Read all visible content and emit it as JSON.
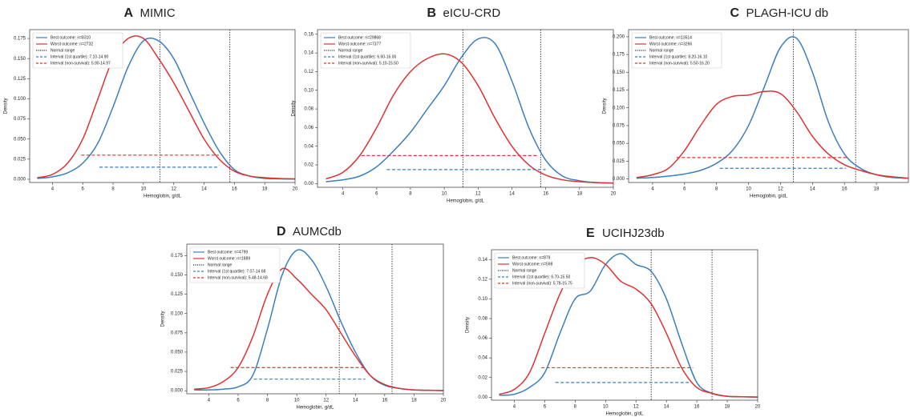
{
  "chart_data": [
    {
      "type": "line",
      "label": "A",
      "title": "MIMIC",
      "xlabel": "Hemoglobin, g/dL",
      "ylabel": "Density",
      "x": [
        3,
        4,
        5,
        6,
        7,
        8,
        9,
        10,
        11,
        12,
        13,
        14,
        15,
        16,
        17,
        18,
        19,
        20
      ],
      "series": [
        {
          "name": "Best outcome: n=8310",
          "color": "#3a7fc1",
          "values": [
            0.001,
            0.003,
            0.008,
            0.02,
            0.045,
            0.09,
            0.14,
            0.172,
            0.172,
            0.15,
            0.11,
            0.07,
            0.035,
            0.012,
            0.004,
            0.001,
            0.0005,
            0.0002
          ]
        },
        {
          "name": "Worst outcome: n=2732",
          "color": "#e03232",
          "values": [
            0.002,
            0.006,
            0.02,
            0.05,
            0.1,
            0.15,
            0.175,
            0.175,
            0.15,
            0.12,
            0.085,
            0.05,
            0.025,
            0.01,
            0.004,
            0.002,
            0.001,
            0.0005
          ]
        }
      ],
      "normal_range": {
        "name": "Normal range",
        "x": [
          11.1,
          15.7
        ]
      },
      "intervals": [
        {
          "name": "Interval (1st quartile): 7.10-14.90",
          "color": "#3a7fc1",
          "x": [
            7.1,
            14.9
          ],
          "y": 0.015
        },
        {
          "name": "Interval (non-survival): 5.90-14.97",
          "color": "#e03232",
          "x": [
            5.9,
            14.97
          ],
          "y": 0.03
        }
      ],
      "xlim": [
        2.5,
        20
      ],
      "xticks": [
        4,
        6,
        8,
        10,
        12,
        14,
        16,
        18,
        20
      ],
      "ylim": [
        -0.004,
        0.186
      ],
      "yticks": [
        {
          "value": 0,
          "label": "0.000"
        },
        {
          "value": 0.025,
          "label": "0.025"
        },
        {
          "value": 0.05,
          "label": "0.050"
        },
        {
          "value": 0.075,
          "label": "0.075"
        },
        {
          "value": 0.1,
          "label": "0.100"
        },
        {
          "value": 0.125,
          "label": "0.125"
        },
        {
          "value": 0.15,
          "label": "0.150"
        },
        {
          "value": 0.175,
          "label": "0.175"
        }
      ]
    },
    {
      "type": "line",
      "label": "B",
      "title": "eICU-CRD",
      "xlabel": "Hemoglobin, g/dL",
      "ylabel": "Density",
      "x": [
        3,
        4,
        5,
        6,
        7,
        8,
        9,
        10,
        11,
        12,
        13,
        14,
        15,
        16,
        17,
        18,
        19,
        20
      ],
      "series": [
        {
          "name": "Best outcome: n=29868",
          "color": "#3a7fc1",
          "values": [
            0.002,
            0.004,
            0.008,
            0.018,
            0.035,
            0.055,
            0.08,
            0.105,
            0.135,
            0.155,
            0.15,
            0.11,
            0.06,
            0.025,
            0.008,
            0.003,
            0.001,
            0.0005
          ]
        },
        {
          "name": "Worst outcome: n=7377",
          "color": "#e03232",
          "values": [
            0.005,
            0.012,
            0.03,
            0.06,
            0.095,
            0.12,
            0.134,
            0.139,
            0.13,
            0.105,
            0.07,
            0.04,
            0.02,
            0.009,
            0.004,
            0.002,
            0.001,
            0.0005
          ]
        }
      ],
      "normal_range": {
        "name": "Normal range",
        "x": [
          11.1,
          15.7
        ]
      },
      "intervals": [
        {
          "name": "Interval (1st quartile): 6.60-16.00",
          "color": "#3a7fc1",
          "x": [
            6.6,
            16.0
          ],
          "y": 0.015
        },
        {
          "name": "Interval (non-survival): 5.10-15.50",
          "color": "#e03232",
          "x": [
            5.1,
            15.5
          ],
          "y": 0.03
        }
      ],
      "xlim": [
        2.5,
        20
      ],
      "xticks": [
        4,
        6,
        8,
        10,
        12,
        14,
        16,
        18,
        20
      ],
      "ylim": [
        -0.004,
        0.165
      ],
      "yticks": [
        {
          "value": 0,
          "label": "0.00"
        },
        {
          "value": 0.02,
          "label": "0.02"
        },
        {
          "value": 0.04,
          "label": "0.04"
        },
        {
          "value": 0.06,
          "label": "0.06"
        },
        {
          "value": 0.08,
          "label": "0.08"
        },
        {
          "value": 0.1,
          "label": "0.10"
        },
        {
          "value": 0.12,
          "label": "0.12"
        },
        {
          "value": 0.14,
          "label": "0.14"
        },
        {
          "value": 0.16,
          "label": "0.16"
        }
      ]
    },
    {
      "type": "line",
      "label": "C",
      "title": "PLAGH-ICU db",
      "xlabel": "Hemoglobin, g/dL",
      "ylabel": "Density",
      "x": [
        3,
        4,
        5,
        6,
        7,
        8,
        9,
        10,
        11,
        12,
        13,
        14,
        15,
        16,
        17,
        18,
        19,
        20
      ],
      "series": [
        {
          "name": "Best outcome: n=13514",
          "color": "#3a7fc1",
          "values": [
            0.001,
            0.002,
            0.004,
            0.007,
            0.012,
            0.022,
            0.04,
            0.075,
            0.13,
            0.185,
            0.198,
            0.15,
            0.08,
            0.035,
            0.015,
            0.006,
            0.002,
            0.001
          ]
        },
        {
          "name": "Worst outcome: n=3266",
          "color": "#e03232",
          "values": [
            0.002,
            0.006,
            0.015,
            0.04,
            0.075,
            0.105,
            0.116,
            0.118,
            0.123,
            0.12,
            0.095,
            0.06,
            0.035,
            0.02,
            0.012,
            0.006,
            0.003,
            0.001
          ]
        }
      ],
      "normal_range": {
        "name": "Normal range",
        "x": [
          12.8,
          16.7
        ]
      },
      "intervals": [
        {
          "name": "Interval (1st quartile): 8.20-16.10",
          "color": "#3a7fc1",
          "x": [
            8.2,
            16.1
          ],
          "y": 0.015
        },
        {
          "name": "Interval (non-survival): 5.50-16.20",
          "color": "#e03232",
          "x": [
            5.5,
            16.2
          ],
          "y": 0.03
        }
      ],
      "xlim": [
        2.5,
        20
      ],
      "xticks": [
        4,
        6,
        8,
        10,
        12,
        14,
        16,
        18
      ],
      "ylim": [
        -0.005,
        0.21
      ],
      "yticks": [
        {
          "value": 0,
          "label": "0.000"
        },
        {
          "value": 0.025,
          "label": "0.025"
        },
        {
          "value": 0.05,
          "label": "0.050"
        },
        {
          "value": 0.075,
          "label": "0.075"
        },
        {
          "value": 0.1,
          "label": "0.100"
        },
        {
          "value": 0.125,
          "label": "0.125"
        },
        {
          "value": 0.15,
          "label": "0.150"
        },
        {
          "value": 0.175,
          "label": "0.175"
        },
        {
          "value": 0.2,
          "label": "0.200"
        }
      ]
    },
    {
      "type": "line",
      "label": "D",
      "title": "AUMCdb",
      "xlabel": "Hemoglobin, g/dL",
      "ylabel": "Density",
      "x": [
        3,
        4,
        5,
        6,
        7,
        8,
        9,
        10,
        11,
        12,
        13,
        14,
        15,
        16,
        17,
        18,
        19,
        20
      ],
      "series": [
        {
          "name": "Best outcome: n=4799",
          "color": "#3a7fc1",
          "values": [
            0.001,
            0.001,
            0.002,
            0.005,
            0.02,
            0.08,
            0.15,
            0.182,
            0.17,
            0.135,
            0.09,
            0.05,
            0.02,
            0.007,
            0.003,
            0.001,
            0.0005,
            0.0002
          ]
        },
        {
          "name": "Worst outcome: n=1889",
          "color": "#e03232",
          "values": [
            0.002,
            0.004,
            0.012,
            0.03,
            0.07,
            0.125,
            0.158,
            0.145,
            0.125,
            0.105,
            0.075,
            0.045,
            0.02,
            0.008,
            0.003,
            0.001,
            0.0005,
            0.0002
          ]
        }
      ],
      "normal_range": {
        "name": "Normal range",
        "x": [
          12.9,
          16.5
        ]
      },
      "intervals": [
        {
          "name": "Interval (1st quartile): 7.07-14.68",
          "color": "#3a7fc1",
          "x": [
            7.07,
            14.68
          ],
          "y": 0.015
        },
        {
          "name": "Interval (non-survival): 5.48-14.68",
          "color": "#e03232",
          "x": [
            5.48,
            14.68
          ],
          "y": 0.03
        }
      ],
      "xlim": [
        2.5,
        20
      ],
      "xticks": [
        4,
        6,
        8,
        10,
        12,
        14,
        16,
        18,
        20
      ],
      "ylim": [
        -0.004,
        0.19
      ],
      "yticks": [
        {
          "value": 0,
          "label": "0.000"
        },
        {
          "value": 0.025,
          "label": "0.025"
        },
        {
          "value": 0.05,
          "label": "0.050"
        },
        {
          "value": 0.075,
          "label": "0.075"
        },
        {
          "value": 0.1,
          "label": "0.100"
        },
        {
          "value": 0.125,
          "label": "0.125"
        },
        {
          "value": 0.15,
          "label": "0.150"
        },
        {
          "value": 0.175,
          "label": "0.175"
        }
      ]
    },
    {
      "type": "line",
      "label": "E",
      "title": "UCIHJ23db",
      "xlabel": "Hemoglobin, g/dL",
      "ylabel": "Density",
      "x": [
        3,
        4,
        5,
        6,
        7,
        8,
        9,
        10,
        11,
        12,
        13,
        14,
        15,
        16,
        17,
        18,
        19,
        20
      ],
      "series": [
        {
          "name": "Best outcome: n=879",
          "color": "#3a7fc1",
          "values": [
            0.002,
            0.003,
            0.01,
            0.025,
            0.065,
            0.1,
            0.108,
            0.135,
            0.146,
            0.135,
            0.128,
            0.1,
            0.055,
            0.015,
            0.004,
            0.001,
            0.0005,
            0.0002
          ]
        },
        {
          "name": "Worst outcome: n=598",
          "color": "#e03232",
          "values": [
            0.003,
            0.008,
            0.025,
            0.065,
            0.105,
            0.133,
            0.142,
            0.135,
            0.118,
            0.11,
            0.095,
            0.065,
            0.03,
            0.01,
            0.004,
            0.001,
            0.0005,
            0.0002
          ]
        }
      ],
      "normal_range": {
        "name": "Normal range",
        "x": [
          13.0,
          17.0
        ]
      },
      "intervals": [
        {
          "name": "Interval (1st quartile): 6.70-15.50",
          "color": "#3a7fc1",
          "x": [
            6.7,
            15.5
          ],
          "y": 0.015
        },
        {
          "name": "Interval (non-survival): 5.78-15.75",
          "color": "#e03232",
          "x": [
            5.78,
            15.75
          ],
          "y": 0.03
        }
      ],
      "xlim": [
        2.5,
        20
      ],
      "xticks": [
        4,
        6,
        8,
        10,
        12,
        14,
        16,
        18,
        20
      ],
      "ylim": [
        -0.003,
        0.15
      ],
      "yticks": [
        {
          "value": 0,
          "label": "0.00"
        },
        {
          "value": 0.02,
          "label": "0.02"
        },
        {
          "value": 0.04,
          "label": "0.04"
        },
        {
          "value": 0.06,
          "label": "0.06"
        },
        {
          "value": 0.08,
          "label": "0.08"
        },
        {
          "value": 0.1,
          "label": "0.10"
        },
        {
          "value": 0.12,
          "label": "0.12"
        },
        {
          "value": 0.14,
          "label": "0.14"
        }
      ]
    }
  ]
}
